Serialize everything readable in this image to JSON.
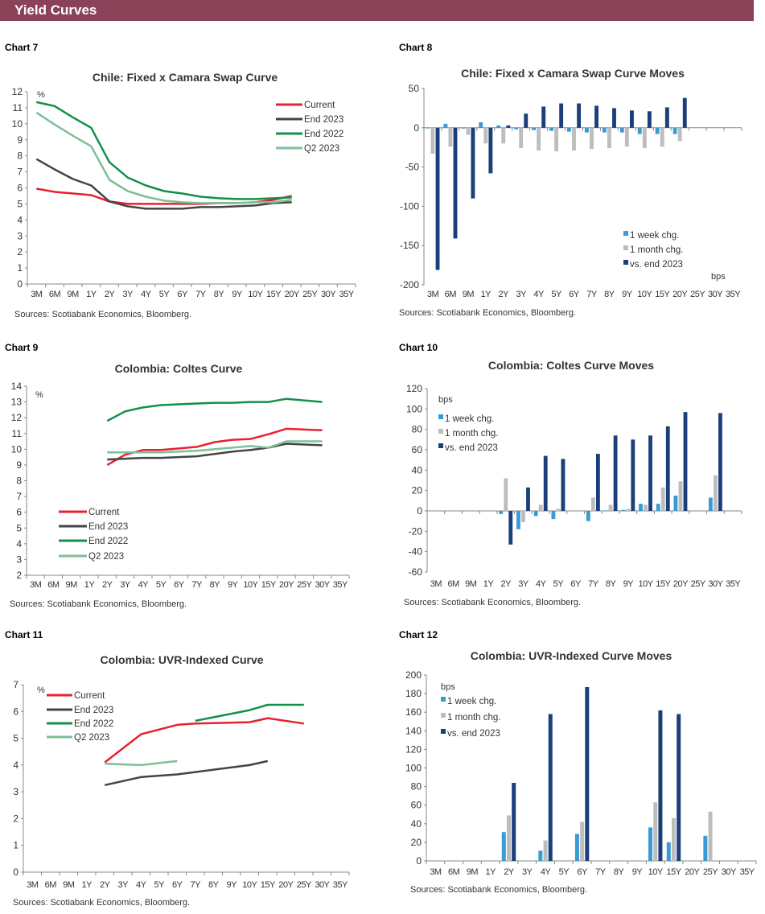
{
  "header": {
    "title": "Yield Curves"
  },
  "colors": {
    "header_bg": "#8a4259",
    "Current": "#e8202f",
    "End 2023": "#444444",
    "End 2022": "#13904a",
    "Q2 2023": "#7dbf98",
    "1 week chg.": "#3a9ad4",
    "1 month chg.": "#bdbdbd",
    "vs. end 2023": "#1b3f7a"
  },
  "chart_data": [
    {
      "label": "Chart 7",
      "type": "line",
      "title": "Chile: Fixed x Camara Swap Curve",
      "unit": "%",
      "source": "Sources: Scotiabank Economics, Bloomberg.",
      "ylim": [
        0,
        12
      ],
      "yticks": [
        0,
        1,
        2,
        3,
        4,
        5,
        6,
        7,
        8,
        9,
        10,
        11,
        12
      ],
      "legend": "top-right",
      "grid": false,
      "categories": [
        "3M",
        "6M",
        "9M",
        "1Y",
        "2Y",
        "3Y",
        "4Y",
        "5Y",
        "6Y",
        "7Y",
        "8Y",
        "9Y",
        "10Y",
        "15Y",
        "20Y",
        "25Y",
        "30Y",
        "35Y"
      ],
      "series": [
        {
          "name": "Current",
          "values": [
            5.95,
            5.75,
            5.65,
            5.55,
            5.15,
            5.0,
            5.0,
            5.0,
            5.0,
            5.0,
            5.05,
            5.05,
            5.1,
            5.25,
            5.5,
            null,
            null,
            null
          ]
        },
        {
          "name": "End 2023",
          "values": [
            7.8,
            7.15,
            6.55,
            6.15,
            5.15,
            4.85,
            4.7,
            4.7,
            4.7,
            4.8,
            4.8,
            4.85,
            4.9,
            5.05,
            5.1,
            null,
            null,
            null
          ]
        },
        {
          "name": "End 2022",
          "values": [
            11.35,
            11.1,
            10.4,
            9.75,
            7.6,
            6.65,
            6.15,
            5.8,
            5.65,
            5.45,
            5.35,
            5.3,
            5.3,
            5.35,
            5.4,
            null,
            null,
            null
          ]
        },
        {
          "name": "Q2 2023",
          "values": [
            10.7,
            9.95,
            9.25,
            8.6,
            6.5,
            5.8,
            5.45,
            5.2,
            5.1,
            5.05,
            5.05,
            5.05,
            5.1,
            5.1,
            5.25,
            null,
            null,
            null
          ]
        }
      ]
    },
    {
      "label": "Chart 8",
      "type": "bar",
      "title": "Chile: Fixed x Camara Swap Curve Moves",
      "unit": "bps",
      "source": "Sources: Scotiabank Economics, Bloomberg.",
      "ylim": [
        -200,
        50
      ],
      "yticks": [
        -200,
        -150,
        -100,
        -50,
        0,
        50
      ],
      "legend": "bottom-right",
      "grid": false,
      "categories": [
        "3M",
        "6M",
        "9M",
        "1Y",
        "2Y",
        "3Y",
        "4Y",
        "5Y",
        "6Y",
        "7Y",
        "8Y",
        "9Y",
        "10Y",
        "15Y",
        "20Y",
        "25Y",
        "30Y",
        "35Y"
      ],
      "series": [
        {
          "name": "1 week chg.",
          "values": [
            0,
            5,
            -1,
            7,
            3,
            -2,
            -3,
            -4,
            -5,
            -6,
            -6,
            -6,
            -8,
            -8,
            -8,
            null,
            null,
            null
          ]
        },
        {
          "name": "1 month chg.",
          "values": [
            -33,
            -24,
            -9,
            -20,
            -20,
            -26,
            -29,
            -30,
            -29,
            -27,
            -26,
            -24,
            -26,
            -24,
            -17,
            null,
            null,
            null
          ]
        },
        {
          "name": "vs. end 2023",
          "values": [
            -181,
            -141,
            -90,
            -58,
            3,
            18,
            27,
            31,
            31,
            28,
            25,
            22,
            21,
            26,
            38,
            null,
            null,
            null
          ]
        }
      ]
    },
    {
      "label": "Chart 9",
      "type": "line",
      "title": "Colombia: Coltes Curve",
      "unit": "%",
      "source": "Sources: Scotiabank Economics, Bloomberg.",
      "ylim": [
        2,
        14
      ],
      "yticks": [
        2,
        3,
        4,
        5,
        6,
        7,
        8,
        9,
        10,
        11,
        12,
        13,
        14
      ],
      "legend": "bottom-left",
      "grid": false,
      "categories": [
        "3M",
        "6M",
        "9M",
        "1Y",
        "2Y",
        "3Y",
        "4Y",
        "5Y",
        "6Y",
        "7Y",
        "8Y",
        "9Y",
        "10Y",
        "15Y",
        "20Y",
        "25Y",
        "30Y",
        "35Y"
      ],
      "series": [
        {
          "name": "Current",
          "values": [
            null,
            null,
            null,
            null,
            9.0,
            9.65,
            9.95,
            9.95,
            10.05,
            10.15,
            10.45,
            10.6,
            10.65,
            10.95,
            11.3,
            null,
            11.2,
            null
          ]
        },
        {
          "name": "End 2023",
          "values": [
            null,
            null,
            null,
            null,
            9.35,
            9.4,
            9.45,
            9.45,
            9.5,
            9.55,
            9.7,
            9.85,
            9.95,
            10.1,
            10.35,
            null,
            10.25,
            null
          ]
        },
        {
          "name": "End 2022",
          "values": [
            null,
            null,
            null,
            null,
            11.8,
            12.4,
            12.65,
            12.8,
            12.85,
            12.9,
            12.95,
            12.95,
            13.0,
            13.0,
            13.2,
            null,
            13.0,
            null
          ]
        },
        {
          "name": "Q2 2023",
          "values": [
            null,
            null,
            null,
            null,
            9.8,
            9.8,
            9.8,
            9.8,
            9.85,
            9.9,
            10.0,
            10.1,
            10.2,
            10.1,
            10.5,
            null,
            10.5,
            null
          ]
        }
      ]
    },
    {
      "label": "Chart 10",
      "type": "bar",
      "title": "Colombia: Coltes Curve Moves",
      "unit": "bps",
      "source": "Sources: Scotiabank Economics, Bloomberg.",
      "ylim": [
        -60,
        120
      ],
      "yticks": [
        -60,
        -40,
        -20,
        0,
        20,
        40,
        60,
        80,
        100,
        120
      ],
      "legend": "top-left",
      "grid": false,
      "categories": [
        "3M",
        "6M",
        "9M",
        "1Y",
        "2Y",
        "3Y",
        "4Y",
        "5Y",
        "6Y",
        "7Y",
        "8Y",
        "9Y",
        "10Y",
        "15Y",
        "20Y",
        "25Y",
        "30Y",
        "35Y"
      ],
      "series": [
        {
          "name": "1 week chg.",
          "values": [
            null,
            null,
            null,
            null,
            -3,
            -18,
            -5,
            -8,
            null,
            -10,
            0.5,
            1,
            7,
            7,
            15,
            null,
            13,
            null
          ]
        },
        {
          "name": "1 month chg.",
          "values": [
            null,
            null,
            null,
            null,
            32,
            -11,
            6,
            2,
            null,
            13,
            6,
            2,
            6,
            23,
            29,
            null,
            35,
            null
          ]
        },
        {
          "name": "vs. end 2023",
          "values": [
            null,
            null,
            null,
            null,
            -33,
            23,
            54,
            51,
            null,
            56,
            74,
            70,
            74,
            83,
            97,
            null,
            96,
            null
          ]
        }
      ]
    },
    {
      "label": "Chart 11",
      "type": "line",
      "title": "Colombia: UVR-Indexed Curve",
      "unit": "%",
      "source": "Sources: Scotiabank Economics, Bloomberg.",
      "ylim": [
        0,
        7
      ],
      "yticks": [
        0,
        1,
        2,
        3,
        4,
        5,
        6,
        7
      ],
      "legend": "top-left",
      "grid": false,
      "categories": [
        "3M",
        "6M",
        "9M",
        "1Y",
        "2Y",
        "3Y",
        "4Y",
        "5Y",
        "6Y",
        "7Y",
        "8Y",
        "9Y",
        "10Y",
        "15Y",
        "20Y",
        "25Y",
        "30Y",
        "35Y"
      ],
      "series": [
        {
          "name": "Current",
          "values": [
            null,
            null,
            null,
            null,
            4.1,
            null,
            5.15,
            null,
            5.5,
            5.55,
            null,
            null,
            5.6,
            5.75,
            null,
            5.55,
            null,
            null
          ]
        },
        {
          "name": "End 2023",
          "values": [
            null,
            null,
            null,
            null,
            3.25,
            null,
            3.55,
            null,
            3.65,
            null,
            null,
            null,
            4.0,
            4.15,
            null,
            null,
            null,
            null
          ]
        },
        {
          "name": "End 2022",
          "values": [
            null,
            null,
            null,
            null,
            null,
            null,
            null,
            null,
            null,
            5.65,
            null,
            null,
            6.05,
            6.25,
            null,
            6.25,
            null,
            null
          ]
        },
        {
          "name": "Q2 2023",
          "values": [
            null,
            null,
            null,
            null,
            4.05,
            null,
            4.0,
            null,
            4.15,
            null,
            null,
            null,
            null,
            null,
            null,
            null,
            null,
            null
          ]
        }
      ]
    },
    {
      "label": "Chart 12",
      "type": "bar",
      "title": "Colombia: UVR-Indexed Curve Moves",
      "unit": "bps",
      "source": "Sources: Scotiabank Economics, Bloomberg.",
      "ylim": [
        0,
        200
      ],
      "yticks": [
        0,
        20,
        40,
        60,
        80,
        100,
        120,
        140,
        160,
        180,
        200
      ],
      "legend": "top-left",
      "grid": false,
      "categories": [
        "3M",
        "6M",
        "9M",
        "1Y",
        "2Y",
        "3Y",
        "4Y",
        "5Y",
        "6Y",
        "7Y",
        "8Y",
        "9Y",
        "10Y",
        "15Y",
        "20Y",
        "25Y",
        "30Y",
        "35Y"
      ],
      "series": [
        {
          "name": "1 week chg.",
          "values": [
            null,
            null,
            null,
            null,
            31,
            null,
            11,
            null,
            29,
            null,
            null,
            null,
            36,
            20,
            null,
            27,
            null,
            null
          ]
        },
        {
          "name": "1 month chg.",
          "values": [
            null,
            null,
            null,
            null,
            49,
            null,
            22,
            null,
            42,
            null,
            null,
            null,
            63,
            46,
            null,
            53,
            null,
            null
          ]
        },
        {
          "name": "vs. end 2023",
          "values": [
            null,
            null,
            null,
            null,
            84,
            null,
            158,
            null,
            187,
            null,
            null,
            null,
            162,
            158,
            null,
            null,
            null,
            null
          ]
        }
      ]
    }
  ]
}
